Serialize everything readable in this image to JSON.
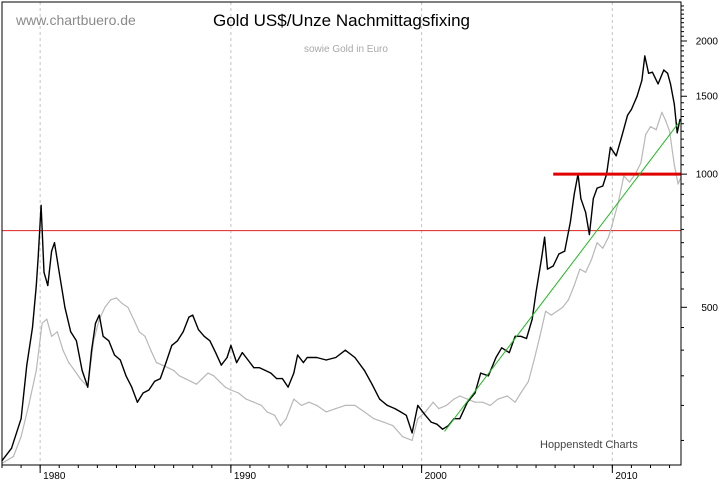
{
  "brand": "www.chartbuero.de",
  "credit": "Hoppenstedt Charts",
  "chart_data": {
    "type": "line",
    "title": "Gold US$/Unze Nachmittagsfixing",
    "subtitle": "sowie Gold in Euro",
    "xlabel": "",
    "ylabel": "",
    "y_scale": "log",
    "xlim": [
      1978.0,
      2013.6
    ],
    "ylim": [
      220,
      2450
    ],
    "x_ticks": [
      {
        "value": 1980,
        "label": "1980"
      },
      {
        "value": 1990,
        "label": "1990"
      },
      {
        "value": 2000,
        "label": "2000"
      },
      {
        "value": 2010,
        "label": "2010"
      }
    ],
    "y_ticks": [
      {
        "value": 500,
        "label": "500"
      },
      {
        "value": 1000,
        "label": "1000"
      },
      {
        "value": 1500,
        "label": "1500"
      },
      {
        "value": 2000,
        "label": "2000"
      }
    ],
    "y_minor_ticks": [
      250,
      300,
      350,
      400,
      450,
      550,
      600,
      650,
      700,
      750,
      800,
      850,
      900,
      950,
      1050,
      1100,
      1150,
      1200,
      1250,
      1300,
      1350,
      1400,
      1450,
      1550,
      1600,
      1650,
      1700,
      1750,
      1800,
      1850,
      1900,
      1950,
      2050,
      2100,
      2150,
      2200,
      2250,
      2300,
      2350,
      2400
    ],
    "vertical_grid_x": [
      1980,
      1990,
      2000,
      2010
    ],
    "series": [
      {
        "color": "#000000",
        "points": [
          [
            1978.0,
            225
          ],
          [
            1978.5,
            240
          ],
          [
            1979.0,
            280
          ],
          [
            1979.3,
            370
          ],
          [
            1979.6,
            450
          ],
          [
            1979.8,
            560
          ],
          [
            1979.9,
            650
          ],
          [
            1980.05,
            850
          ],
          [
            1980.2,
            600
          ],
          [
            1980.4,
            560
          ],
          [
            1980.6,
            670
          ],
          [
            1980.75,
            700
          ],
          [
            1981.0,
            600
          ],
          [
            1981.3,
            500
          ],
          [
            1981.6,
            440
          ],
          [
            1981.9,
            420
          ],
          [
            1982.2,
            360
          ],
          [
            1982.5,
            330
          ],
          [
            1982.7,
            400
          ],
          [
            1982.9,
            460
          ],
          [
            1983.1,
            480
          ],
          [
            1983.3,
            430
          ],
          [
            1983.6,
            420
          ],
          [
            1983.9,
            390
          ],
          [
            1984.2,
            380
          ],
          [
            1984.5,
            350
          ],
          [
            1984.8,
            330
          ],
          [
            1985.1,
            305
          ],
          [
            1985.4,
            320
          ],
          [
            1985.7,
            325
          ],
          [
            1986.0,
            340
          ],
          [
            1986.3,
            345
          ],
          [
            1986.6,
            375
          ],
          [
            1986.9,
            410
          ],
          [
            1987.2,
            420
          ],
          [
            1987.5,
            440
          ],
          [
            1987.8,
            475
          ],
          [
            1988.0,
            480
          ],
          [
            1988.3,
            445
          ],
          [
            1988.6,
            430
          ],
          [
            1988.9,
            420
          ],
          [
            1989.2,
            395
          ],
          [
            1989.5,
            370
          ],
          [
            1989.8,
            385
          ],
          [
            1990.0,
            410
          ],
          [
            1990.3,
            375
          ],
          [
            1990.6,
            395
          ],
          [
            1990.9,
            380
          ],
          [
            1991.2,
            365
          ],
          [
            1991.5,
            365
          ],
          [
            1991.8,
            360
          ],
          [
            1992.1,
            355
          ],
          [
            1992.4,
            345
          ],
          [
            1992.7,
            345
          ],
          [
            1993.0,
            330
          ],
          [
            1993.3,
            355
          ],
          [
            1993.5,
            390
          ],
          [
            1993.8,
            375
          ],
          [
            1994.0,
            385
          ],
          [
            1994.5,
            385
          ],
          [
            1995.0,
            380
          ],
          [
            1995.5,
            385
          ],
          [
            1996.0,
            400
          ],
          [
            1996.5,
            385
          ],
          [
            1997.0,
            360
          ],
          [
            1997.4,
            335
          ],
          [
            1997.8,
            310
          ],
          [
            1998.2,
            300
          ],
          [
            1998.6,
            295
          ],
          [
            1998.9,
            290
          ],
          [
            1999.2,
            285
          ],
          [
            1999.5,
            260
          ],
          [
            1999.8,
            300
          ],
          [
            2000.2,
            285
          ],
          [
            2000.5,
            275
          ],
          [
            2000.8,
            272
          ],
          [
            2001.1,
            265
          ],
          [
            2001.4,
            270
          ],
          [
            2001.7,
            280
          ],
          [
            2002.0,
            280
          ],
          [
            2002.4,
            305
          ],
          [
            2002.8,
            320
          ],
          [
            2003.1,
            355
          ],
          [
            2003.5,
            350
          ],
          [
            2003.9,
            385
          ],
          [
            2004.2,
            405
          ],
          [
            2004.6,
            395
          ],
          [
            2004.9,
            430
          ],
          [
            2005.2,
            430
          ],
          [
            2005.5,
            425
          ],
          [
            2005.8,
            470
          ],
          [
            2006.0,
            540
          ],
          [
            2006.3,
            650
          ],
          [
            2006.45,
            720
          ],
          [
            2006.6,
            610
          ],
          [
            2006.9,
            620
          ],
          [
            2007.2,
            660
          ],
          [
            2007.5,
            670
          ],
          [
            2007.8,
            780
          ],
          [
            2008.0,
            900
          ],
          [
            2008.2,
            1000
          ],
          [
            2008.35,
            880
          ],
          [
            2008.6,
            820
          ],
          [
            2008.8,
            730
          ],
          [
            2009.0,
            880
          ],
          [
            2009.2,
            930
          ],
          [
            2009.5,
            940
          ],
          [
            2009.7,
            1000
          ],
          [
            2009.9,
            1150
          ],
          [
            2010.2,
            1100
          ],
          [
            2010.5,
            1220
          ],
          [
            2010.8,
            1360
          ],
          [
            2011.0,
            1400
          ],
          [
            2011.3,
            1500
          ],
          [
            2011.55,
            1630
          ],
          [
            2011.7,
            1850
          ],
          [
            2011.9,
            1690
          ],
          [
            2012.1,
            1700
          ],
          [
            2012.4,
            1600
          ],
          [
            2012.7,
            1720
          ],
          [
            2012.9,
            1690
          ],
          [
            2013.05,
            1600
          ],
          [
            2013.25,
            1440
          ],
          [
            2013.4,
            1240
          ],
          [
            2013.55,
            1330
          ]
        ]
      },
      {
        "color": "#b8b8b8",
        "points": [
          [
            1978.0,
            222
          ],
          [
            1978.6,
            230
          ],
          [
            1979.0,
            255
          ],
          [
            1979.4,
            300
          ],
          [
            1979.8,
            360
          ],
          [
            1980.1,
            460
          ],
          [
            1980.35,
            470
          ],
          [
            1980.6,
            430
          ],
          [
            1980.9,
            440
          ],
          [
            1981.2,
            400
          ],
          [
            1981.5,
            375
          ],
          [
            1981.8,
            360
          ],
          [
            1982.1,
            345
          ],
          [
            1982.5,
            330
          ],
          [
            1982.8,
            420
          ],
          [
            1983.1,
            470
          ],
          [
            1983.4,
            500
          ],
          [
            1983.7,
            520
          ],
          [
            1984.0,
            525
          ],
          [
            1984.3,
            510
          ],
          [
            1984.6,
            500
          ],
          [
            1984.9,
            470
          ],
          [
            1985.2,
            440
          ],
          [
            1985.5,
            430
          ],
          [
            1985.8,
            400
          ],
          [
            1986.1,
            375
          ],
          [
            1986.4,
            370
          ],
          [
            1986.7,
            365
          ],
          [
            1987.0,
            360
          ],
          [
            1987.3,
            350
          ],
          [
            1987.6,
            345
          ],
          [
            1987.9,
            340
          ],
          [
            1988.2,
            335
          ],
          [
            1988.5,
            345
          ],
          [
            1988.8,
            355
          ],
          [
            1989.1,
            350
          ],
          [
            1989.4,
            340
          ],
          [
            1989.7,
            330
          ],
          [
            1990.0,
            325
          ],
          [
            1990.4,
            320
          ],
          [
            1990.8,
            310
          ],
          [
            1991.2,
            305
          ],
          [
            1991.6,
            300
          ],
          [
            1991.9,
            290
          ],
          [
            1992.3,
            285
          ],
          [
            1992.6,
            270
          ],
          [
            1992.9,
            280
          ],
          [
            1993.3,
            310
          ],
          [
            1993.7,
            300
          ],
          [
            1994.1,
            305
          ],
          [
            1994.5,
            300
          ],
          [
            1995.0,
            290
          ],
          [
            1995.5,
            295
          ],
          [
            1996.0,
            300
          ],
          [
            1996.5,
            300
          ],
          [
            1997.0,
            290
          ],
          [
            1997.5,
            280
          ],
          [
            1998.0,
            275
          ],
          [
            1998.5,
            270
          ],
          [
            1999.0,
            255
          ],
          [
            1999.5,
            250
          ],
          [
            1999.8,
            280
          ],
          [
            2000.2,
            290
          ],
          [
            2000.6,
            305
          ],
          [
            2000.9,
            295
          ],
          [
            2001.3,
            300
          ],
          [
            2001.7,
            310
          ],
          [
            2002.0,
            315
          ],
          [
            2002.4,
            310
          ],
          [
            2002.8,
            305
          ],
          [
            2003.2,
            305
          ],
          [
            2003.6,
            300
          ],
          [
            2004.0,
            310
          ],
          [
            2004.5,
            315
          ],
          [
            2004.9,
            305
          ],
          [
            2005.2,
            320
          ],
          [
            2005.6,
            340
          ],
          [
            2005.9,
            380
          ],
          [
            2006.2,
            430
          ],
          [
            2006.5,
            490
          ],
          [
            2006.8,
            480
          ],
          [
            2007.1,
            490
          ],
          [
            2007.4,
            500
          ],
          [
            2007.7,
            520
          ],
          [
            2008.0,
            560
          ],
          [
            2008.3,
            610
          ],
          [
            2008.6,
            600
          ],
          [
            2008.9,
            640
          ],
          [
            2009.2,
            700
          ],
          [
            2009.5,
            680
          ],
          [
            2009.8,
            720
          ],
          [
            2010.0,
            770
          ],
          [
            2010.3,
            860
          ],
          [
            2010.6,
            990
          ],
          [
            2010.9,
            960
          ],
          [
            2011.2,
            1000
          ],
          [
            2011.5,
            1060
          ],
          [
            2011.75,
            1230
          ],
          [
            2012.0,
            1280
          ],
          [
            2012.3,
            1260
          ],
          [
            2012.6,
            1380
          ],
          [
            2012.8,
            1320
          ],
          [
            2013.0,
            1250
          ],
          [
            2013.25,
            1050
          ],
          [
            2013.45,
            950
          ],
          [
            2013.6,
            985
          ]
        ]
      }
    ],
    "reference_lines": [
      {
        "y": 745,
        "x_from": 1978.0,
        "x_to": 2013.6,
        "color": "#dd2222",
        "style": "thin"
      },
      {
        "y": 1000,
        "x_from": 2006.9,
        "x_to": 2013.6,
        "color": "#e00000",
        "style": "thick"
      },
      {
        "from": [
          2001.2,
          262
        ],
        "to": [
          2013.5,
          1310
        ],
        "color": "#22bb22",
        "style": "trend"
      }
    ]
  }
}
